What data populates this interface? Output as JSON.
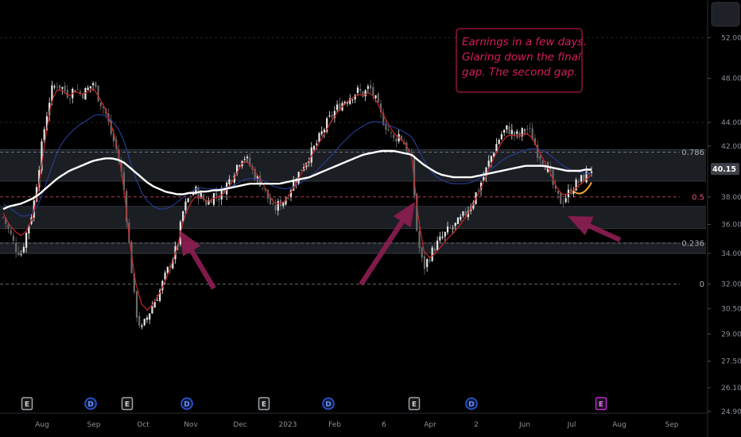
{
  "chart_data": {
    "type": "candlestick",
    "y_scale": "log",
    "ylim": [
      24.9,
      56
    ],
    "y_ticks": [
      "52.00",
      "48.00",
      "44.00",
      "42.00",
      "38.00",
      "36.00",
      "34.00",
      "32.00",
      "30.50",
      "29.00",
      "27.50",
      "26.10",
      "24.90"
    ],
    "y_tick_values": [
      52,
      48,
      44,
      42,
      38,
      36,
      34,
      32,
      30.5,
      29,
      27.5,
      26.1,
      24.9
    ],
    "x_ticks": [
      "Aug",
      "Sep",
      "Oct",
      "Nov",
      "Dec",
      "2023",
      "Feb",
      "6",
      "Apr",
      "2",
      "Jun",
      "Jul",
      "Aug",
      "Sep"
    ],
    "last_price": "40.15",
    "fib_levels": [
      {
        "label": "0.786",
        "value": 41.5
      },
      {
        "label": "0.5",
        "value": 38.0
      },
      {
        "label": "0.236",
        "value": 34.7
      },
      {
        "label": "0",
        "value": 32.0
      }
    ],
    "zones": [
      {
        "top": 41.7,
        "bottom": 39.2
      },
      {
        "top": 37.3,
        "bottom": 35.7
      },
      {
        "top": 34.7,
        "bottom": 34.0
      }
    ],
    "annotation": [
      "Earnings in a few days.",
      "Glaring down the final",
      "gap. The second gap."
    ],
    "events": [
      {
        "label": "E",
        "kind": "earnings"
      },
      {
        "label": "D",
        "kind": "dividend"
      },
      {
        "label": "E",
        "kind": "earnings"
      },
      {
        "label": "D",
        "kind": "dividend"
      },
      {
        "label": "E",
        "kind": "earnings"
      },
      {
        "label": "D",
        "kind": "dividend"
      },
      {
        "label": "E",
        "kind": "earnings"
      },
      {
        "label": "D",
        "kind": "dividend"
      },
      {
        "label": "E",
        "kind": "upcoming-earnings"
      }
    ],
    "close_path": [
      36.5,
      35.5,
      34.4,
      34.0,
      35.6,
      37.2,
      40.5,
      44.0,
      46.8,
      47.5,
      47.0,
      46.4,
      47.2,
      46.5,
      46.9,
      47.6,
      46.0,
      45.0,
      43.0,
      41.5,
      39.0,
      34.5,
      30.5,
      29.2,
      30.0,
      30.8,
      31.5,
      32.5,
      33.5,
      34.5,
      37.0,
      38.0,
      38.5,
      38.0,
      37.5,
      38.2,
      38.0,
      38.8,
      39.5,
      40.5,
      41.3,
      40.5,
      39.6,
      39.0,
      38.0,
      37.0,
      37.5,
      37.8,
      38.8,
      39.6,
      40.5,
      41.2,
      42.0,
      43.0,
      44.0,
      44.8,
      45.5,
      46.0,
      46.4,
      46.8,
      46.5,
      47.2,
      46.0,
      44.5,
      43.5,
      42.5,
      43.0,
      42.0,
      41.0,
      35.0,
      33.0,
      33.8,
      34.5,
      35.0,
      35.5,
      35.8,
      36.2,
      36.8,
      37.5,
      38.5,
      39.5,
      40.8,
      42.0,
      43.0,
      43.5,
      43.0,
      42.8,
      43.6,
      43.0,
      41.5,
      40.8,
      39.8,
      38.2,
      37.6,
      38.2,
      38.8,
      39.2,
      39.6,
      40.15
    ],
    "ema_fast": [
      36.8,
      36.0,
      35.5,
      35.2,
      35.6,
      36.6,
      39.0,
      42.5,
      45.8,
      47.0,
      46.8,
      46.3,
      46.8,
      46.5,
      46.7,
      47.1,
      46.2,
      45.2,
      43.8,
      42.0,
      39.0,
      35.0,
      32.2,
      30.8,
      30.4,
      30.8,
      31.4,
      32.2,
      33.2,
      34.4,
      36.2,
      37.4,
      38.0,
      38.0,
      37.6,
      37.9,
      38.0,
      38.4,
      39.0,
      39.9,
      40.8,
      40.6,
      39.9,
      39.2,
      38.4,
      37.6,
      37.5,
      37.7,
      38.4,
      39.2,
      40.1,
      40.9,
      41.7,
      42.6,
      43.5,
      44.4,
      45.1,
      45.7,
      46.1,
      46.5,
      46.4,
      46.7,
      46.1,
      45.0,
      44.0,
      43.1,
      42.7,
      42.2,
      41.3,
      37.0,
      34.2,
      33.7,
      34.0,
      34.5,
      35.0,
      35.4,
      35.9,
      36.5,
      37.2,
      38.1,
      39.1,
      40.2,
      41.3,
      42.3,
      42.9,
      42.9,
      42.8,
      43.1,
      42.8,
      41.8,
      40.9,
      40.0,
      38.9,
      38.2,
      38.2,
      38.5,
      38.9,
      39.3,
      39.7
    ],
    "ema_mid": [
      37.5,
      37.2,
      36.9,
      36.6,
      36.6,
      36.8,
      37.6,
      38.8,
      40.2,
      41.5,
      42.4,
      43.0,
      43.5,
      43.9,
      44.2,
      44.6,
      44.7,
      44.6,
      44.2,
      43.6,
      42.6,
      41.0,
      39.5,
      38.4,
      37.7,
      37.3,
      37.1,
      37.1,
      37.3,
      37.6,
      38.0,
      38.3,
      38.6,
      38.7,
      38.6,
      38.6,
      38.6,
      38.7,
      38.8,
      39.0,
      39.3,
      39.4,
      39.4,
      39.3,
      39.1,
      38.8,
      38.7,
      38.6,
      38.7,
      38.9,
      39.2,
      39.5,
      39.9,
      40.4,
      40.9,
      41.4,
      42.0,
      42.5,
      43.0,
      43.4,
      43.7,
      44.0,
      44.1,
      44.0,
      43.8,
      43.6,
      43.4,
      43.1,
      42.8,
      41.9,
      40.9,
      40.1,
      39.6,
      39.3,
      39.1,
      39.0,
      39.0,
      39.0,
      39.1,
      39.3,
      39.6,
      40.0,
      40.4,
      40.8,
      41.1,
      41.3,
      41.5,
      41.7,
      41.8,
      41.8,
      41.6,
      41.3,
      40.9,
      40.5,
      40.2,
      40.0,
      39.9,
      39.8,
      39.8
    ],
    "ema_slow": [
      37.1,
      37.3,
      37.4,
      37.5,
      37.7,
      37.9,
      38.2,
      38.6,
      39.0,
      39.4,
      39.7,
      40.0,
      40.2,
      40.4,
      40.6,
      40.8,
      40.9,
      41.0,
      41.0,
      40.9,
      40.7,
      40.3,
      39.9,
      39.5,
      39.1,
      38.8,
      38.6,
      38.4,
      38.3,
      38.2,
      38.2,
      38.3,
      38.3,
      38.4,
      38.4,
      38.5,
      38.5,
      38.6,
      38.7,
      38.8,
      38.9,
      39.0,
      39.0,
      39.0,
      39.0,
      39.0,
      39.0,
      39.1,
      39.2,
      39.3,
      39.4,
      39.5,
      39.7,
      39.9,
      40.1,
      40.3,
      40.5,
      40.7,
      40.9,
      41.1,
      41.3,
      41.4,
      41.5,
      41.6,
      41.6,
      41.6,
      41.5,
      41.4,
      41.3,
      40.9,
      40.5,
      40.2,
      39.9,
      39.7,
      39.6,
      39.5,
      39.5,
      39.5,
      39.5,
      39.6,
      39.7,
      39.8,
      39.9,
      40.0,
      40.1,
      40.2,
      40.3,
      40.4,
      40.4,
      40.4,
      40.4,
      40.3,
      40.2,
      40.1,
      40.0,
      40.0,
      40.0,
      40.1,
      40.1
    ],
    "colors": {
      "background": "#000000",
      "up": "#e8e8e8",
      "down": "#6a6a6a",
      "ema_fast": "#c62828",
      "ema_mid": "#283f9a",
      "ema_slow": "#ffffff",
      "fib_line": "#8a8f98",
      "fib_half": "#e05572",
      "zone": "#202329",
      "arrow": "#8e1d52",
      "note": "#d81b60",
      "earnings": "#9ea3ab",
      "dividend": "#2f5be0",
      "upcoming": "#c026d3",
      "curve": "#f5a623"
    }
  }
}
